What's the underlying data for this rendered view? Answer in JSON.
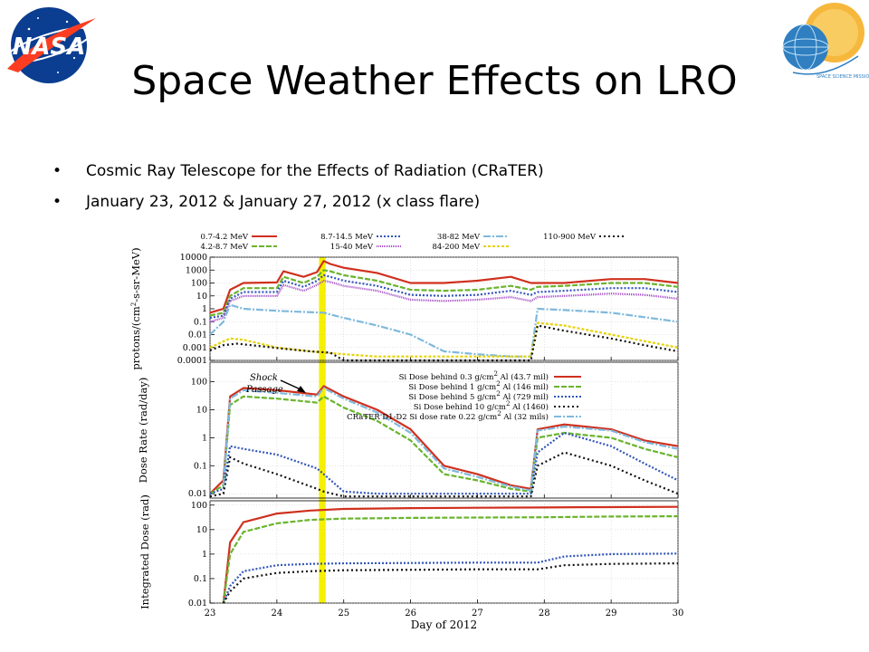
{
  "slide": {
    "title": "Space Weather Effects on LRO",
    "bullets": [
      "Cosmic Ray Telescope for the Effects of Radiation (CRaTER)",
      "January 23, 2012 & January 27, 2012 (x class flare)"
    ],
    "logos": {
      "left": {
        "text": "NASA",
        "colors": {
          "disc": "#0b3d91",
          "swoosh": "#fc3d21"
        }
      },
      "right": {
        "text": "SPACE SCIENCE MISSION DIRECTORATE",
        "colors": {
          "sun": "#f6b83c",
          "globe": "#2f7fc1"
        }
      }
    },
    "colors": {
      "shock_band": "#f5f000",
      "text": "#000000"
    }
  },
  "chart_data": [
    {
      "type": "line",
      "panel": "top",
      "ylabel_parts": [
        "protons/(cm",
        "2",
        "-s-sr-MeV)"
      ],
      "yscale": "log",
      "ylim": [
        0.0001,
        10000
      ],
      "xlim": [
        23,
        30
      ],
      "yticks": [
        {
          "v": 10000,
          "label": "10000"
        },
        {
          "v": 1000,
          "label": "1000"
        },
        {
          "v": 100,
          "label": "100"
        },
        {
          "v": 10,
          "label": "10"
        },
        {
          "v": 1,
          "label": "1"
        },
        {
          "v": 0.1,
          "label": "0.1"
        },
        {
          "v": 0.01,
          "label": "0.01"
        },
        {
          "v": 0.001,
          "label": "0.001"
        },
        {
          "v": 0.0001,
          "label": "0.0001"
        }
      ],
      "legend": "top",
      "series": [
        {
          "name": "0.7-4.2 MeV",
          "color": "#d0301e",
          "dash": "",
          "x": [
            23,
            23.2,
            23.3,
            23.5,
            24,
            24.1,
            24.4,
            24.6,
            24.7,
            24.8,
            25,
            25.5,
            26,
            26.5,
            27,
            27.5,
            27.8,
            27.9,
            28.3,
            29,
            29.5,
            30
          ],
          "y": [
            0.5,
            1,
            30,
            100,
            110,
            800,
            300,
            700,
            5000,
            3000,
            1500,
            600,
            100,
            100,
            150,
            300,
            100,
            100,
            100,
            200,
            200,
            100
          ]
        },
        {
          "name": "4.2-8.7 MeV",
          "color": "#6ab42d",
          "dash": "6,2",
          "x": [
            23,
            23.2,
            23.3,
            23.5,
            24,
            24.1,
            24.4,
            24.6,
            24.7,
            24.8,
            25,
            25.5,
            26,
            26.5,
            27,
            27.5,
            27.8,
            27.9,
            28.3,
            29,
            29.5,
            30
          ],
          "y": [
            0.3,
            0.5,
            10,
            40,
            40,
            300,
            100,
            300,
            1000,
            800,
            400,
            150,
            30,
            25,
            30,
            60,
            30,
            50,
            60,
            100,
            100,
            50
          ]
        },
        {
          "name": "8.7-14.5 MeV",
          "color": "#3355bb",
          "dash": "2,2",
          "x": [
            23,
            23.2,
            23.3,
            23.5,
            24,
            24.1,
            24.4,
            24.6,
            24.7,
            24.8,
            25,
            25.5,
            26,
            26.5,
            27,
            27.5,
            27.8,
            27.9,
            28.3,
            29,
            29.5,
            30
          ],
          "y": [
            0.2,
            0.3,
            6,
            20,
            20,
            150,
            50,
            150,
            400,
            300,
            150,
            60,
            12,
            10,
            12,
            25,
            12,
            20,
            25,
            40,
            40,
            20
          ]
        },
        {
          "name": "15-40 MeV",
          "color": "#a347c6",
          "dash": "1,1",
          "x": [
            23,
            23.2,
            23.3,
            23.5,
            24,
            24.1,
            24.4,
            24.6,
            24.7,
            24.8,
            25,
            25.5,
            26,
            26.5,
            27,
            27.5,
            27.8,
            27.9,
            28.3,
            29,
            29.5,
            30
          ],
          "y": [
            0.1,
            0.2,
            4,
            10,
            10,
            70,
            25,
            70,
            150,
            120,
            60,
            25,
            5,
            4,
            5,
            8,
            4,
            8,
            10,
            15,
            12,
            6
          ]
        },
        {
          "name": "38-82 MeV",
          "color": "#7fb9dc",
          "dash": "8,2,2,2",
          "x": [
            23,
            23.2,
            23.3,
            23.5,
            24,
            24.3,
            24.7,
            25,
            25.5,
            26,
            26.5,
            27,
            27.5,
            27.8,
            27.9,
            28.3,
            29,
            30
          ],
          "y": [
            0.01,
            0.1,
            2,
            1,
            0.7,
            0.6,
            0.5,
            0.2,
            0.05,
            0.01,
            0.0005,
            0.0003,
            0.0002,
            0.0002,
            1,
            0.8,
            0.5,
            0.1
          ]
        },
        {
          "name": "84-200 MeV",
          "color": "#e6d200",
          "dash": "3,2",
          "x": [
            23,
            23.2,
            23.3,
            23.5,
            24,
            24.5,
            25,
            25.5,
            26,
            27,
            27.8,
            27.9,
            28.3,
            29,
            30
          ],
          "y": [
            0.001,
            0.003,
            0.005,
            0.004,
            0.001,
            0.0005,
            0.0003,
            0.0002,
            0.0002,
            0.0002,
            0.0002,
            0.08,
            0.05,
            0.01,
            0.001
          ]
        },
        {
          "name": "110-900 MeV",
          "color": "#111111",
          "dash": "2,3",
          "x": [
            23,
            23.2,
            23.4,
            23.8,
            24.1,
            24.5,
            24.8,
            25,
            27.8,
            27.9,
            28.3,
            29,
            29.5,
            30
          ],
          "y": [
            0.0006,
            0.0015,
            0.002,
            0.0012,
            0.0008,
            0.0005,
            0.0004,
            0.0001,
            0.0001,
            0.05,
            0.02,
            0.005,
            0.0015,
            0.0005
          ]
        }
      ]
    },
    {
      "type": "line",
      "panel": "middle",
      "ylabel": "Dose Rate (rad/day)",
      "yscale": "log",
      "ylim": [
        0.007,
        500
      ],
      "xlim": [
        23,
        30
      ],
      "yticks": [
        {
          "v": 100,
          "label": "100"
        },
        {
          "v": 10,
          "label": "10"
        },
        {
          "v": 1,
          "label": "1"
        },
        {
          "v": 0.1,
          "label": "0.1"
        },
        {
          "v": 0.01,
          "label": "0.01"
        }
      ],
      "annotation_lines": [
        "Shock",
        "Passage"
      ],
      "legend": "top-right",
      "series": [
        {
          "label_parts": [
            "Si Dose behind 0.3 g/cm",
            "2",
            " Al (43.7 mil)"
          ],
          "color": "#d0301e",
          "dash": "",
          "x": [
            23,
            23.2,
            23.3,
            23.5,
            24,
            24.6,
            24.7,
            25,
            25.5,
            26,
            26.5,
            27,
            27.5,
            27.8,
            27.9,
            28.3,
            29,
            29.5,
            30
          ],
          "y": [
            0.01,
            0.03,
            30,
            60,
            50,
            35,
            70,
            30,
            10,
            2,
            0.1,
            0.05,
            0.02,
            0.015,
            2,
            3,
            2,
            0.8,
            0.5
          ]
        },
        {
          "label_parts": [
            "Si Dose behind 1 g/cm",
            "2",
            " Al (146 mil)"
          ],
          "color": "#6ab42d",
          "dash": "6,2",
          "x": [
            23,
            23.2,
            23.3,
            23.5,
            24,
            24.6,
            24.7,
            25,
            25.5,
            26,
            26.5,
            27,
            27.5,
            27.8,
            27.9,
            28.3,
            29,
            29.5,
            30
          ],
          "y": [
            0.01,
            0.02,
            15,
            30,
            25,
            18,
            30,
            12,
            4,
            0.8,
            0.05,
            0.03,
            0.015,
            0.012,
            1,
            1.5,
            1,
            0.4,
            0.2
          ]
        },
        {
          "label_parts": [
            "Si Dose behind 5 g/cm",
            "2",
            " Al (729 mil)"
          ],
          "color": "#3355bb",
          "dash": "2,2",
          "x": [
            23,
            23.2,
            23.3,
            23.5,
            24,
            24.6,
            24.7,
            25,
            25.5,
            26,
            27,
            27.8,
            27.9,
            28.3,
            29,
            29.5,
            30
          ],
          "y": [
            0.01,
            0.015,
            0.5,
            0.4,
            0.25,
            0.08,
            0.05,
            0.012,
            0.01,
            0.01,
            0.01,
            0.01,
            0.3,
            1.5,
            0.5,
            0.12,
            0.03
          ]
        },
        {
          "label_parts": [
            "Si Dose behind 10 g/cm",
            "2",
            " Al (1460)"
          ],
          "color": "#111111",
          "dash": "2,3",
          "x": [
            23,
            23.2,
            23.3,
            23.5,
            24,
            24.6,
            24.7,
            25,
            27.8,
            27.9,
            28.3,
            29,
            29.5,
            30
          ],
          "y": [
            0.008,
            0.01,
            0.2,
            0.12,
            0.05,
            0.015,
            0.012,
            0.008,
            0.008,
            0.1,
            0.3,
            0.1,
            0.03,
            0.01
          ]
        },
        {
          "label_parts": [
            "CRaTER D1-D2 Si dose rate 0.22 g/cm",
            "2",
            " Al (32 mils)"
          ],
          "color": "#7fb9dc",
          "dash": "8,2,2,2",
          "x": [
            23.2,
            23.3,
            23.5,
            24,
            24.6,
            24.7,
            25,
            25.5,
            26,
            26.5,
            27,
            27.5,
            27.8,
            27.9,
            28.3,
            29,
            29.5,
            30
          ],
          "y": [
            0.02,
            25,
            50,
            40,
            30,
            60,
            25,
            8,
            1.5,
            0.08,
            0.04,
            0.018,
            0.013,
            1.8,
            2.5,
            1.8,
            0.7,
            0.4
          ]
        }
      ]
    },
    {
      "type": "line",
      "panel": "bottom",
      "ylabel": "Integrated Dose (rad)",
      "xlabel": "Day of 2012",
      "yscale": "log",
      "ylim": [
        0.01,
        150
      ],
      "xlim": [
        23,
        30
      ],
      "xticks": [
        23,
        24,
        25,
        26,
        27,
        28,
        29,
        30
      ],
      "yticks": [
        {
          "v": 100,
          "label": "100"
        },
        {
          "v": 10,
          "label": "10"
        },
        {
          "v": 1,
          "label": "1"
        },
        {
          "v": 0.1,
          "label": "0.1"
        },
        {
          "v": 0.01,
          "label": "0.01"
        }
      ],
      "series": [
        {
          "color": "#d0301e",
          "dash": "",
          "x": [
            23.2,
            23.3,
            23.5,
            24,
            24.5,
            25,
            26,
            27,
            28,
            28.5,
            29,
            30
          ],
          "y": [
            0.01,
            3,
            20,
            45,
            60,
            70,
            75,
            78,
            80,
            82,
            83,
            85
          ]
        },
        {
          "color": "#6ab42d",
          "dash": "6,2",
          "x": [
            23.2,
            23.3,
            23.5,
            24,
            24.5,
            25,
            26,
            27,
            28,
            28.5,
            29,
            30
          ],
          "y": [
            0.01,
            1,
            8,
            18,
            25,
            28,
            30,
            31,
            32,
            33,
            34,
            35
          ]
        },
        {
          "color": "#3355bb",
          "dash": "2,2",
          "x": [
            23.2,
            23.3,
            23.5,
            24,
            24.5,
            25,
            27,
            27.9,
            28.3,
            29,
            30
          ],
          "y": [
            0.01,
            0.05,
            0.2,
            0.35,
            0.4,
            0.42,
            0.45,
            0.45,
            0.8,
            1,
            1.05
          ]
        },
        {
          "color": "#111111",
          "dash": "2,3",
          "x": [
            23.2,
            23.3,
            23.5,
            24,
            24.5,
            25,
            27,
            27.9,
            28.3,
            29,
            30
          ],
          "y": [
            0.01,
            0.03,
            0.1,
            0.17,
            0.2,
            0.22,
            0.24,
            0.24,
            0.35,
            0.4,
            0.42
          ]
        }
      ]
    }
  ]
}
